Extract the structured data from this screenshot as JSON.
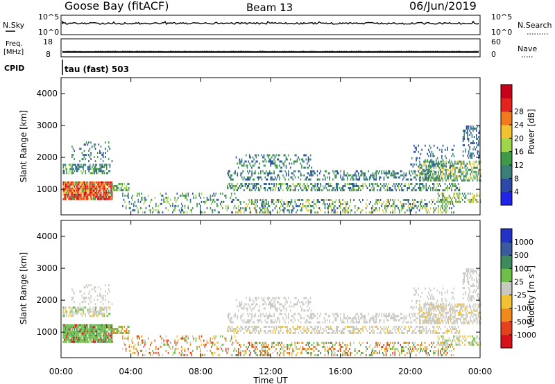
{
  "header": {
    "station": "Goose Bay (fitACF)",
    "beam": "Beam 13",
    "date": "06/Jun/2019"
  },
  "noise_panel": {
    "left_label": "N.Sky",
    "left_ticks": [
      "10^5",
      "10^0"
    ],
    "right_ticks": [
      "10^5",
      "10^0"
    ],
    "right_label": "N.Search"
  },
  "freq_panel": {
    "left_label_line1": "Freq.",
    "left_label_line2": "[MHz]",
    "left_ticks": [
      "18",
      "8"
    ],
    "right_ticks": [
      "60",
      "0"
    ],
    "right_label": "Nave"
  },
  "cpid_panel": {
    "label": "CPID",
    "value": "tau (fast) 503"
  },
  "chart_data": [
    {
      "type": "heatmap",
      "name": "power",
      "ylabel": "Slant Range [km]",
      "xlim": [
        "00:00",
        "00:00"
      ],
      "ylim": [
        200,
        4500
      ],
      "yticks": [
        "1000",
        "2000",
        "3000",
        "4000"
      ],
      "colorbar_label": "Power [dB]",
      "colorbar_ticks": [
        "4",
        "8",
        "12",
        "16",
        "20",
        "24",
        "28"
      ],
      "colors": [
        "#1f24e8",
        "#2a4aa6",
        "#3a7f7a",
        "#3f9a45",
        "#9fd54a",
        "#f2c232",
        "#f07a1c",
        "#e4221e",
        "#c8001a"
      ]
    },
    {
      "type": "heatmap",
      "name": "velocity",
      "ylabel": "Slant Range [km]",
      "xlabel": "Time UT",
      "xticks": [
        "00:00",
        "04:00",
        "08:00",
        "12:00",
        "16:00",
        "20:00",
        "00:00"
      ],
      "ylim": [
        200,
        4500
      ],
      "yticks": [
        "1000",
        "2000",
        "3000",
        "4000"
      ],
      "colorbar_label": "Velocity [m s",
      "colorbar_label_sup": "-1",
      "colorbar_label_end": "]",
      "colorbar_ticks": [
        "1000",
        "500",
        "100",
        "25",
        "-25",
        "-100",
        "-500",
        "-1000"
      ],
      "colors": [
        "#2333c8",
        "#3a5aa0",
        "#3d8a5c",
        "#6dbf4a",
        "#c9c9c4",
        "#f2c232",
        "#f08a1c",
        "#e4421e",
        "#d8101a"
      ]
    }
  ]
}
